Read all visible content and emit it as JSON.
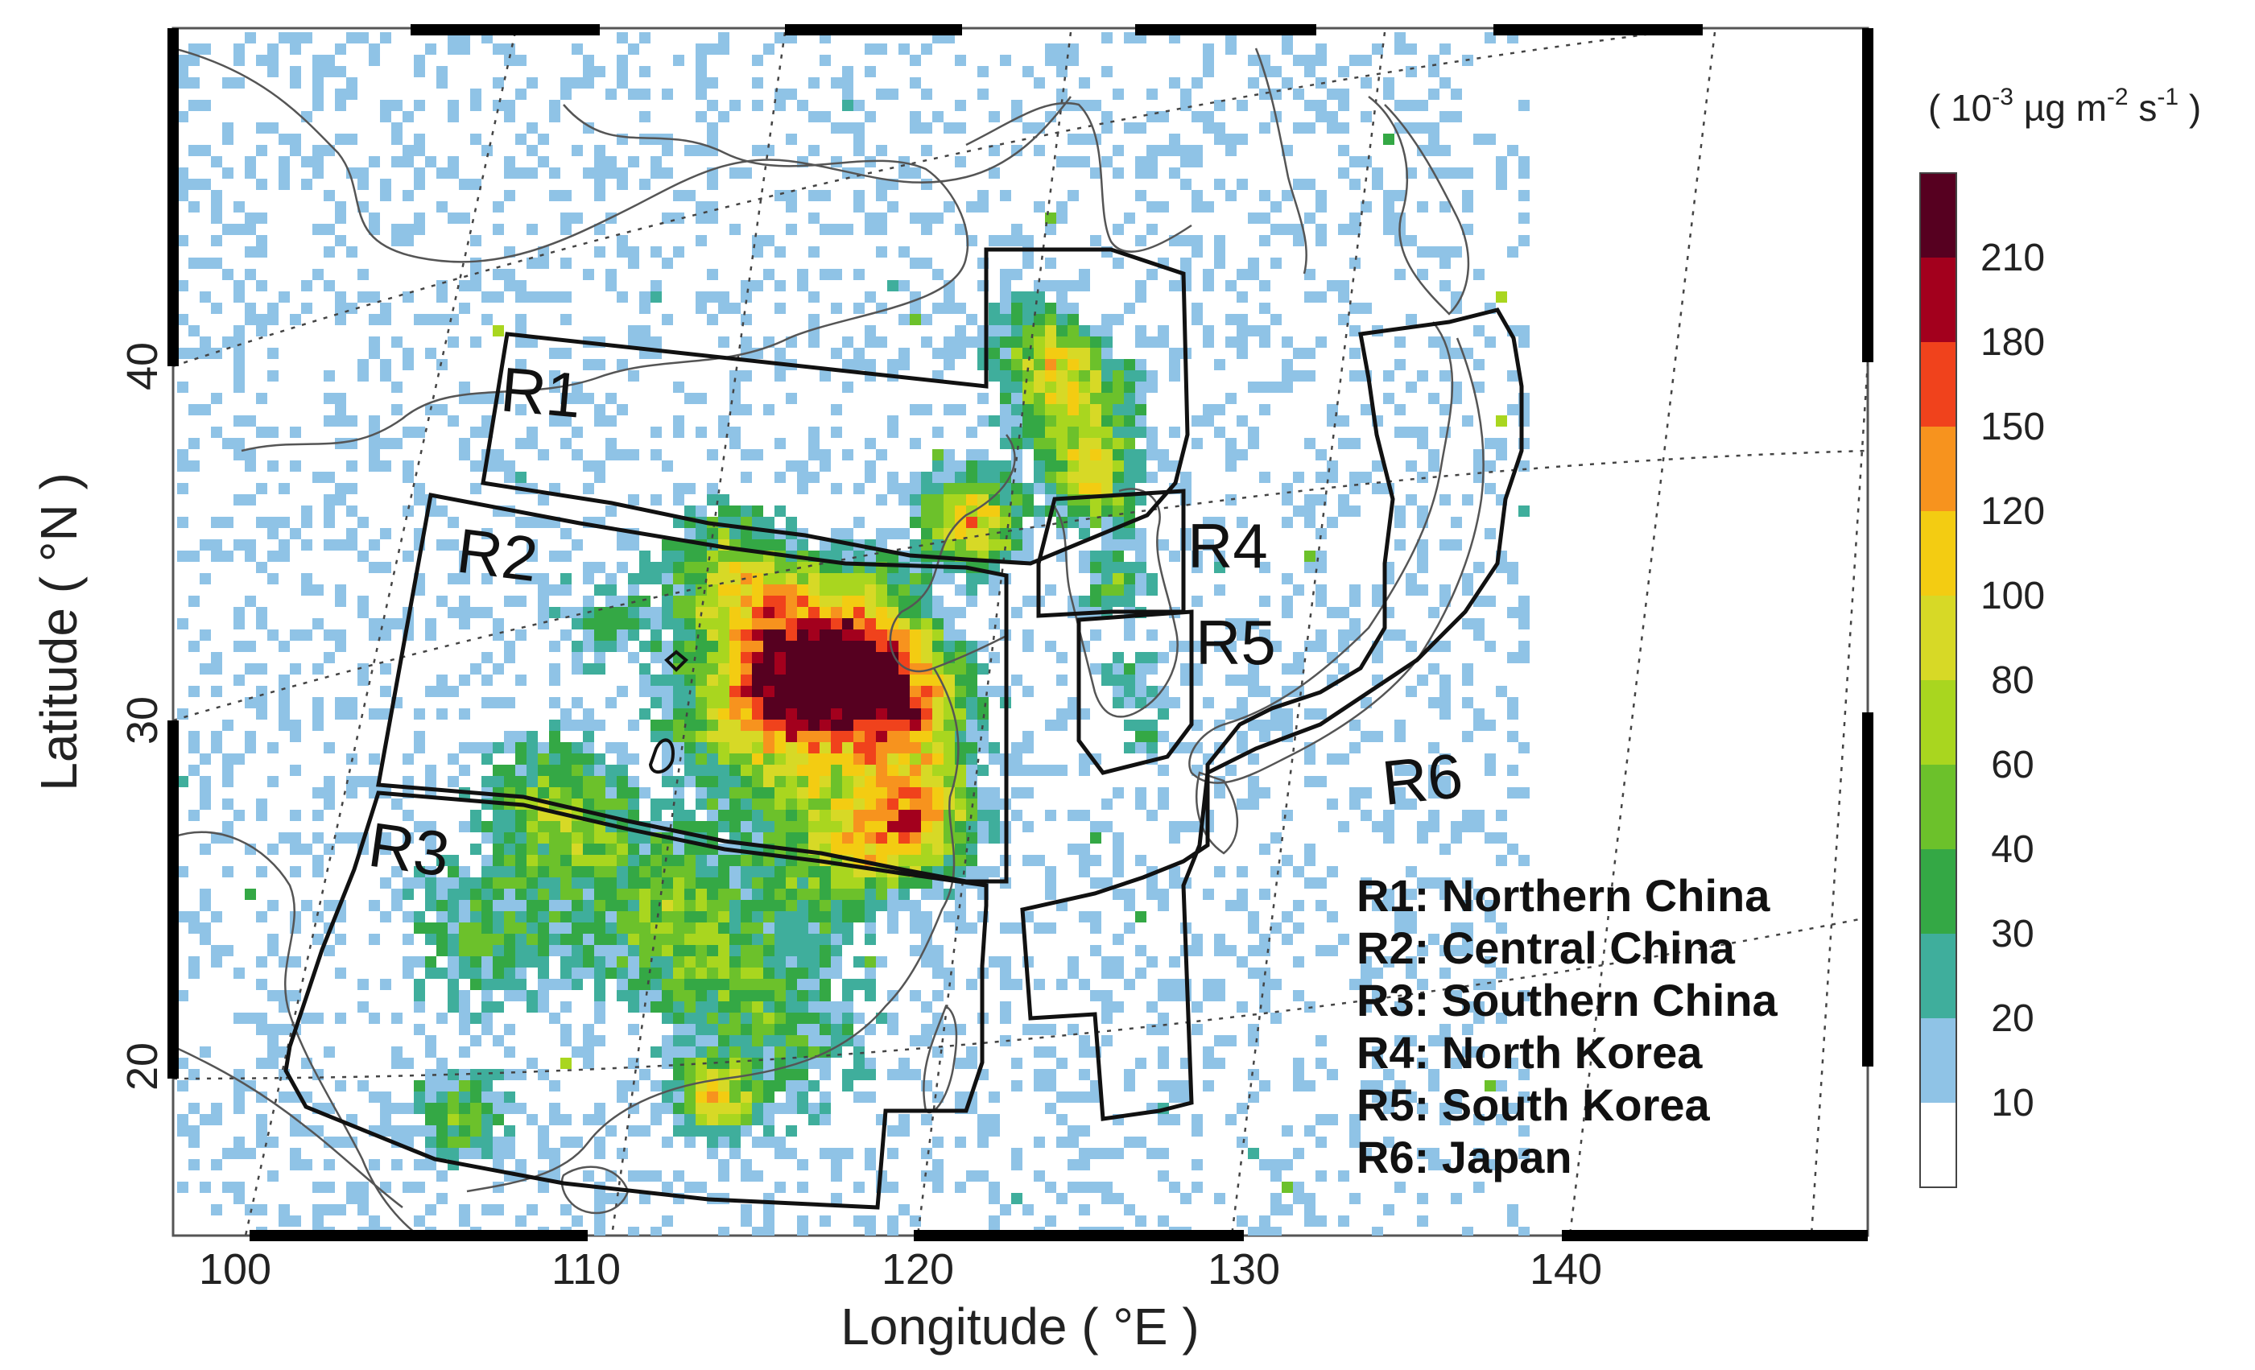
{
  "map": {
    "x_axis_title": "Longitude ( °E )",
    "y_axis_title": "Latitude ( °N )",
    "longitude_ticks": [
      "100",
      "110",
      "120",
      "130",
      "140"
    ],
    "latitude_ticks": [
      "40",
      "30",
      "20"
    ],
    "region_labels": [
      {
        "id": "R1",
        "text": "R1"
      },
      {
        "id": "R2",
        "text": "R2"
      },
      {
        "id": "R3",
        "text": "R3"
      },
      {
        "id": "R4",
        "text": "R4"
      },
      {
        "id": "R5",
        "text": "R5"
      },
      {
        "id": "R6",
        "text": "R6"
      }
    ],
    "legend": [
      "R1: Northern China",
      "R2: Central China",
      "R3: Southern China",
      "R4: North Korea",
      "R5: South Korea",
      "R6: Japan"
    ]
  },
  "colorbar": {
    "unit_open": "( 10",
    "unit_exp1": "-3",
    "unit_mid": " µg m",
    "unit_exp2": "-2",
    "unit_mid2": " s",
    "unit_exp3": "-1",
    "unit_close": " )",
    "labels": [
      "10",
      "20",
      "30",
      "40",
      "60",
      "80",
      "100",
      "120",
      "150",
      "180",
      "210"
    ],
    "colors": [
      "#ffffff",
      "#8fc3e6",
      "#3fae9c",
      "#34a845",
      "#6cc12b",
      "#a9d61f",
      "#d7d926",
      "#f3cc12",
      "#f7931e",
      "#f0421c",
      "#a3001d",
      "#560020"
    ]
  }
}
